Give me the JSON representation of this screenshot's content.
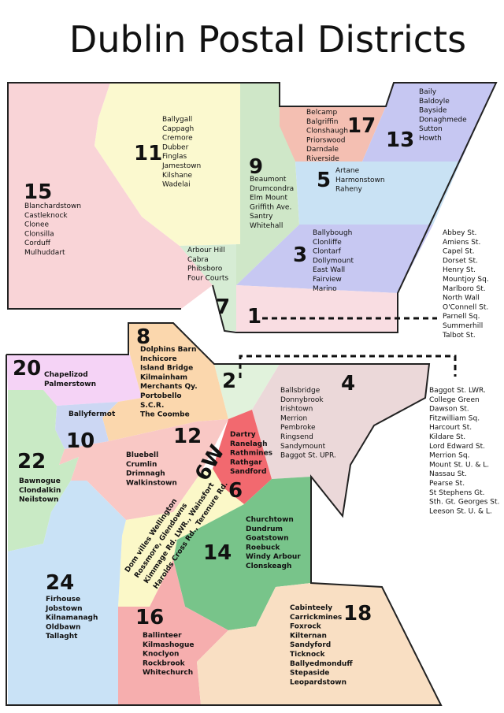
{
  "title": "Dublin Postal Districts",
  "colors": {
    "d1": "#f9dde2",
    "d3": "#c7c8f2",
    "d5": "#c9e2f4",
    "d7": "#d6ecd4",
    "d9": "#cfe7c8",
    "d11": "#fbf9cf",
    "d13": "#c6c7f2",
    "d15": "#f9d4d7",
    "d17": "#f4bfb2",
    "d2": "#e1f2dc",
    "d4": "#ebd8d9",
    "d6": "#f2696f",
    "d6w": "#fbf8c8",
    "d8": "#fbd7ad",
    "d10": "#ccd7f3",
    "d12": "#f9c8c5",
    "d14": "#78c48a",
    "d16": "#f6aeae",
    "d18": "#f9dfc3",
    "d20": "#f5d3f6",
    "d22": "#c9eac5",
    "d24": "#c9e2f6"
  },
  "districts": [
    {
      "id": "1",
      "number": "1",
      "areas": [],
      "side_areas": [
        "Abbey St.",
        "Amiens St.",
        "Capel St.",
        "Dorset St.",
        "Henry St.",
        "Mountjoy Sq.",
        "Marlboro St.",
        "North Wall",
        "O'Connell St.",
        "Parnell Sq.",
        "Summerhill",
        "Talbot St."
      ]
    },
    {
      "id": "2",
      "number": "2",
      "areas": [],
      "side_areas": [
        "Baggot St. LWR.",
        "College Green",
        "Dawson St.",
        "Fitzwilliam Sq.",
        "Harcourt St.",
        "Kildare St.",
        "Lord Edward St.",
        "Merrion Sq.",
        "Mount St. U. & L.",
        "Nassau St.",
        "Pearse St.",
        "St Stephens Gt.",
        "Sth. Gt. Georges St.",
        "Leeson St. U. & L."
      ]
    },
    {
      "id": "3",
      "number": "3",
      "areas": [
        "Ballybough",
        "Clonliffe",
        "Clontarf",
        "Dollymount",
        "East Wall",
        "Fairview",
        "Marino"
      ]
    },
    {
      "id": "4",
      "number": "4",
      "areas": [
        "Ballsbridge",
        "Donnybrook",
        "Irishtown",
        "Merrion",
        "Pembroke",
        "Ringsend",
        "Sandymount",
        "Baggot St. UPR."
      ]
    },
    {
      "id": "5",
      "number": "5",
      "areas": [
        "Artane",
        "Harmonstown",
        "Raheny"
      ]
    },
    {
      "id": "6",
      "number": "6",
      "areas": [
        "Dartry",
        "Ranelagh",
        "Rathmines",
        "Rathgar",
        "Sandford"
      ]
    },
    {
      "id": "6w",
      "number": "6W",
      "areas": [
        "Dom villes Wellington",
        "Rossmore, Glendowns",
        "Kimmage Rd. LWR., Wainsfort",
        "Harolds Cross Rd., Terenure Rd."
      ]
    },
    {
      "id": "7",
      "number": "7",
      "areas": [
        "Arbour Hill",
        "Cabra",
        "Phibsboro",
        "Four Courts"
      ]
    },
    {
      "id": "8",
      "number": "8",
      "areas": [
        "Dolphins Barn",
        "Inchicore",
        "Island Bridge",
        "Kilmainham",
        "Merchants Qy.",
        "Portobello",
        "S.C.R.",
        "The Coombe"
      ]
    },
    {
      "id": "9",
      "number": "9",
      "areas": [
        "Beaumont",
        "Drumcondra",
        "Elm Mount",
        "Griffith Ave.",
        "Santry",
        "Whitehall"
      ]
    },
    {
      "id": "10",
      "number": "10",
      "areas": [
        "Ballyfermot"
      ]
    },
    {
      "id": "11",
      "number": "11",
      "areas": [
        "Ballygall",
        "Cappagh",
        "Cremore",
        "Dubber",
        "Finglas",
        "Jamestown",
        "Kilshane",
        "Wadelai"
      ]
    },
    {
      "id": "12",
      "number": "12",
      "areas": [
        "Bluebell",
        "Crumlin",
        "Drimnagh",
        "Walkinstown"
      ]
    },
    {
      "id": "13",
      "number": "13",
      "areas": [
        "Baily",
        "Baldoyle",
        "Bayside",
        "Donaghmede",
        "Sutton",
        "Howth"
      ]
    },
    {
      "id": "14",
      "number": "14",
      "areas": [
        "Churchtown",
        "Dundrum",
        "Goatstown",
        "Roebuck",
        "Windy Arbour",
        "Clonskeagh"
      ]
    },
    {
      "id": "15",
      "number": "15",
      "areas": [
        "Blanchardstown",
        "Castleknock",
        "Clonee",
        "Clonsilla",
        "Corduff",
        "Mulhuddart"
      ]
    },
    {
      "id": "16",
      "number": "16",
      "areas": [
        "Ballinteer",
        "Kilmashogue",
        "Knoclyon",
        "Rockbrook",
        "Whitechurch"
      ]
    },
    {
      "id": "17",
      "number": "17",
      "areas": [
        "Belcamp",
        "Balgriffin",
        "Clonshaugh",
        "Priorswood",
        "Darndale",
        "Riverside"
      ]
    },
    {
      "id": "18",
      "number": "18",
      "areas": [
        "Cabinteely",
        "Carrickmines",
        "Foxrock",
        "Kilternan",
        "Sandyford",
        "Ticknock",
        "Ballyedmonduff",
        "Stepaside",
        "Leopardstown"
      ]
    },
    {
      "id": "20",
      "number": "20",
      "areas": [
        "Chapelizod",
        "Palmerstown"
      ]
    },
    {
      "id": "22",
      "number": "22",
      "areas": [
        "Bawnogue",
        "Clondalkin",
        "Neilstown"
      ]
    },
    {
      "id": "24",
      "number": "24",
      "areas": [
        "Firhouse",
        "Jobstown",
        "Kilnamanagh",
        "Oldbawn",
        "Tallaght"
      ]
    }
  ]
}
